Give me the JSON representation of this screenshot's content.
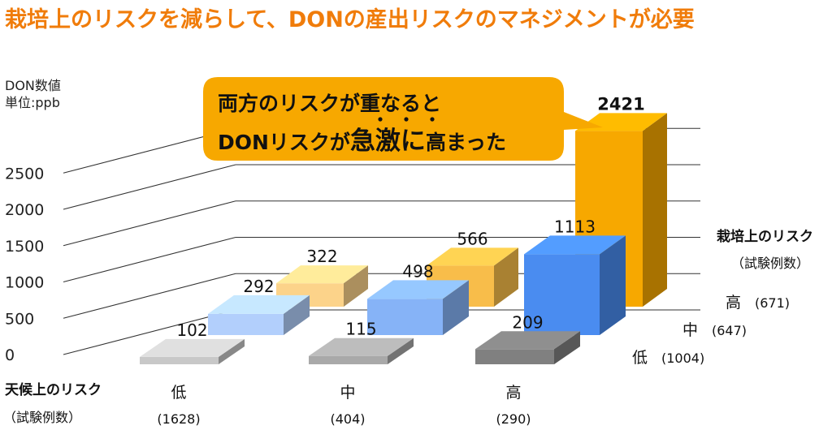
{
  "title": "栽培上のリスクを減らして、DONの産出リスクのマネジメントが必要",
  "chart_data": {
    "type": "bar",
    "ylabel_line1": "DON数値",
    "ylabel_line2": "単位:ppb",
    "yticks": [
      "2500",
      "2000",
      "1500",
      "1000",
      "500",
      "0"
    ],
    "ylim": [
      0,
      2500
    ],
    "x_axis": {
      "name": "天候上のリスク",
      "sub": "（試験例数）",
      "categories": [
        {
          "label": "低",
          "count": "(1628)"
        },
        {
          "label": "中",
          "count": "(404)"
        },
        {
          "label": "高",
          "count": "(290)"
        }
      ]
    },
    "depth_axis": {
      "name": "栽培上のリスク",
      "sub": "（試験例数）",
      "categories": [
        {
          "label": "高",
          "count": "(671)"
        },
        {
          "label": "中",
          "count": "(647)"
        },
        {
          "label": "低",
          "count": "(1004)"
        }
      ]
    },
    "series": [
      {
        "name": "低",
        "values": [
          102,
          115,
          209
        ],
        "colors": [
          "#c8c8c8",
          "#a9a9a9",
          "#808080"
        ]
      },
      {
        "name": "中",
        "values": [
          292,
          498,
          1113
        ],
        "colors": [
          "#b2cffc",
          "#86b3f7",
          "#4a8cf0"
        ]
      },
      {
        "name": "高",
        "values": [
          322,
          566,
          2421
        ],
        "colors": [
          "#fcd38a",
          "#f8bd4a",
          "#f7a800"
        ]
      }
    ],
    "value_labels": [
      "102",
      "115",
      "209",
      "292",
      "498",
      "1113",
      "322",
      "566",
      "2421"
    ]
  },
  "callout": {
    "line1": "両方のリスクが重なると",
    "line2_a": "DONリスクが",
    "line2_em": "急激に",
    "line2_b": "高まった"
  }
}
